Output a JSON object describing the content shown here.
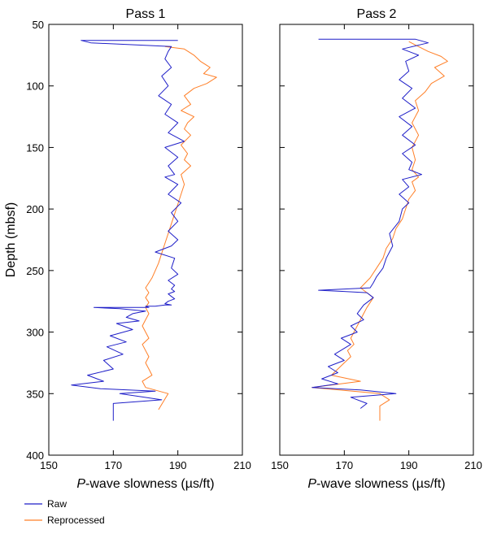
{
  "chart_data": [
    {
      "type": "line",
      "title": "Pass 1",
      "xlabel_italic": "P",
      "xlabel_rest": "-wave slowness (µs/ft)",
      "ylabel": "Depth (mbsf)",
      "xlim": [
        150,
        210
      ],
      "ylim": [
        50,
        400
      ],
      "y_inverted": true,
      "xticks": [
        150,
        170,
        190,
        210
      ],
      "yticks": [
        50,
        100,
        150,
        200,
        250,
        300,
        350,
        400
      ],
      "series": [
        {
          "name": "Raw",
          "color": "#1f1fc8",
          "x": [
            190,
            160,
            163,
            188,
            187,
            186,
            188,
            185,
            187,
            184,
            188,
            186,
            190,
            187,
            192,
            186,
            190,
            187,
            189,
            186,
            190,
            187,
            191,
            188,
            190,
            187,
            190,
            188,
            183,
            189,
            188,
            190,
            187,
            189,
            188,
            189,
            187,
            188,
            189,
            187,
            186,
            188,
            186,
            183,
            180,
            181,
            173,
            164,
            172,
            180,
            176,
            174,
            178,
            171,
            176,
            169,
            174,
            168,
            173,
            167,
            170,
            162,
            167,
            157,
            166,
            183,
            172,
            185,
            170,
            170
          ],
          "y": [
            63,
            63,
            65,
            68,
            72,
            78,
            85,
            92,
            100,
            108,
            115,
            123,
            130,
            138,
            145,
            150,
            158,
            165,
            172,
            174,
            180,
            188,
            195,
            203,
            210,
            218,
            225,
            230,
            235,
            240,
            248,
            253,
            258,
            262,
            265,
            267,
            269,
            271,
            273,
            275,
            277,
            278,
            278,
            279,
            279,
            280,
            280,
            280,
            281,
            283,
            285,
            288,
            291,
            293,
            298,
            303,
            308,
            312,
            318,
            323,
            330,
            335,
            340,
            343,
            346,
            348,
            350,
            355,
            358,
            372
          ]
        },
        {
          "name": "Reprocessed",
          "color": "#ff7f27",
          "x": [
            186,
            192,
            195,
            197,
            200,
            198,
            202,
            199,
            195,
            192,
            194,
            191,
            195,
            193,
            192,
            194,
            191,
            193,
            192,
            194,
            191,
            192,
            191,
            190,
            189,
            188,
            187,
            186,
            185,
            184,
            183,
            182,
            181,
            180,
            181,
            180,
            181,
            180,
            181,
            180,
            179,
            180,
            181,
            179,
            180,
            181,
            180,
            181,
            182,
            179,
            180,
            187,
            184
          ],
          "y": [
            68,
            70,
            75,
            80,
            85,
            90,
            93,
            98,
            102,
            108,
            115,
            120,
            125,
            130,
            135,
            140,
            148,
            155,
            160,
            165,
            172,
            180,
            188,
            196,
            204,
            212,
            220,
            228,
            236,
            244,
            250,
            256,
            260,
            264,
            268,
            272,
            276,
            280,
            285,
            290,
            295,
            300,
            305,
            310,
            315,
            320,
            325,
            330,
            335,
            340,
            345,
            350,
            363
          ]
        }
      ]
    },
    {
      "type": "line",
      "title": "Pass 2",
      "xlabel_italic": "P",
      "xlabel_rest": "-wave slowness (µs/ft)",
      "ylabel": "",
      "xlim": [
        150,
        210
      ],
      "ylim": [
        50,
        400
      ],
      "y_inverted": true,
      "xticks": [
        150,
        170,
        190,
        210
      ],
      "yticks": [
        50,
        100,
        150,
        200,
        250,
        300,
        350,
        400
      ],
      "series": [
        {
          "name": "Raw",
          "color": "#1f1fc8",
          "x": [
            162,
            192,
            196,
            188,
            193,
            189,
            190,
            187,
            191,
            188,
            192,
            187,
            191,
            188,
            192,
            188,
            191,
            190,
            194,
            188,
            190,
            187,
            190,
            188,
            187,
            184,
            185,
            183,
            182,
            180,
            179,
            178,
            162,
            170,
            177,
            179,
            176,
            174,
            176,
            172,
            174,
            169,
            172,
            167,
            170,
            165,
            168,
            163,
            168,
            160,
            175,
            186,
            172,
            177,
            175
          ],
          "y": [
            62,
            62,
            65,
            70,
            75,
            80,
            88,
            95,
            102,
            110,
            118,
            125,
            133,
            140,
            148,
            155,
            162,
            168,
            172,
            176,
            182,
            188,
            195,
            200,
            210,
            220,
            230,
            240,
            248,
            255,
            260,
            264,
            266,
            267,
            268,
            272,
            278,
            285,
            290,
            295,
            300,
            305,
            310,
            318,
            323,
            328,
            333,
            338,
            342,
            345,
            347,
            350,
            353,
            358,
            362
          ]
        },
        {
          "name": "Reprocessed",
          "color": "#ff7f27",
          "x": [
            190,
            193,
            196,
            200,
            202,
            198,
            201,
            197,
            195,
            192,
            193,
            191,
            193,
            191,
            192,
            191,
            193,
            191,
            192,
            190,
            189,
            188,
            186,
            185,
            183,
            182,
            180,
            178,
            175,
            177,
            179,
            178,
            177,
            176,
            175,
            174,
            173,
            172,
            173,
            171,
            172,
            170,
            168,
            166,
            175,
            160,
            181,
            184,
            181,
            181
          ],
          "y": [
            64,
            68,
            72,
            76,
            80,
            85,
            92,
            98,
            105,
            112,
            120,
            130,
            140,
            150,
            160,
            168,
            174,
            178,
            185,
            192,
            200,
            208,
            216,
            224,
            232,
            240,
            248,
            256,
            264,
            268,
            272,
            276,
            280,
            285,
            290,
            295,
            300,
            305,
            310,
            315,
            320,
            325,
            330,
            335,
            340,
            345,
            350,
            355,
            360,
            372
          ]
        }
      ]
    }
  ],
  "legend": [
    {
      "label": "Raw",
      "color": "#1f1fc8"
    },
    {
      "label": "Reprocessed",
      "color": "#ff7f27"
    }
  ]
}
